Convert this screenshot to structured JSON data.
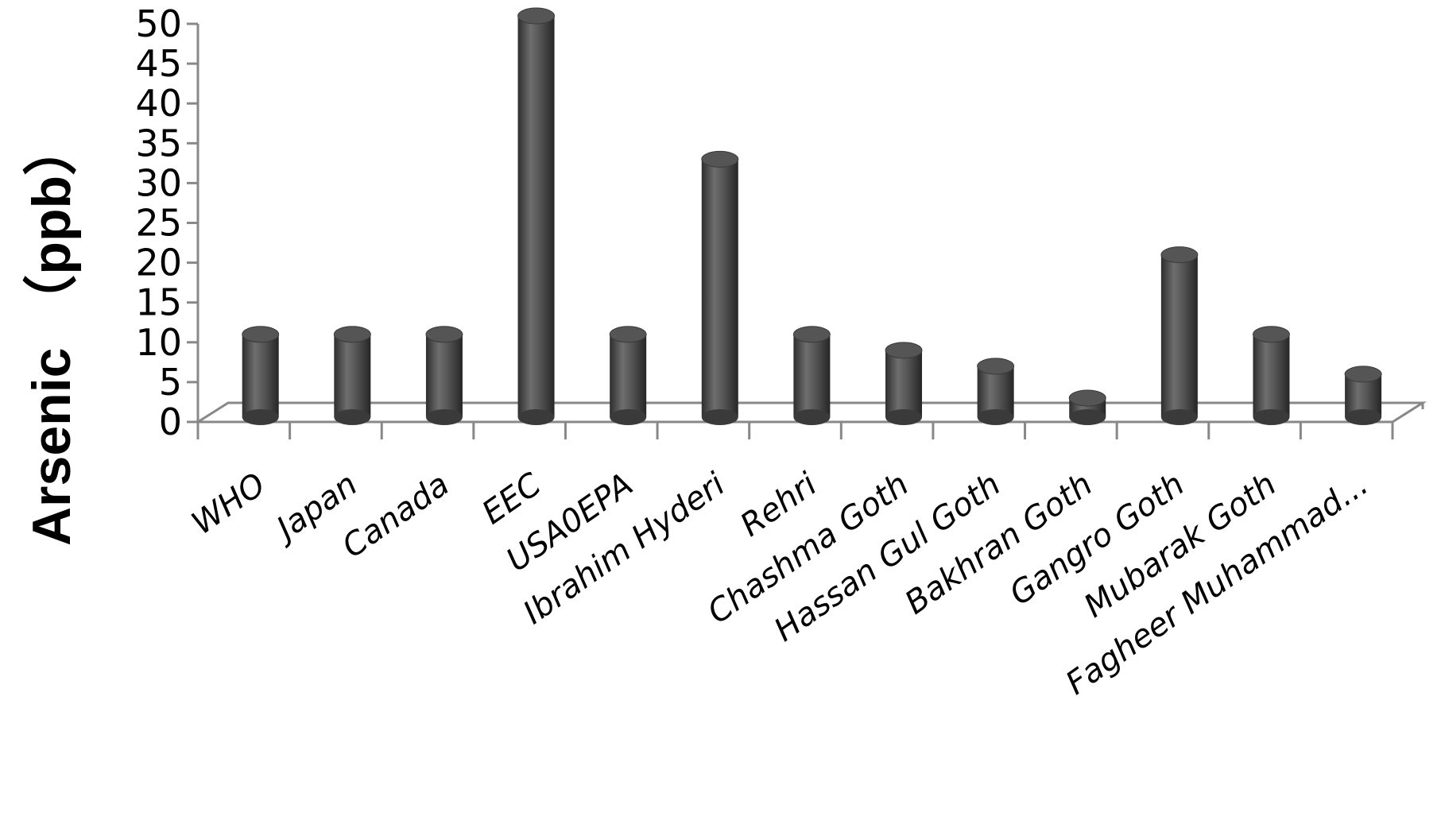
{
  "chart_data": {
    "type": "bar",
    "style": "3d-cylinder",
    "title": "",
    "xlabel": "",
    "ylabel_main": "Arsenic",
    "ylabel_unit": "（ppb）",
    "ylim": [
      0,
      50
    ],
    "yticks": [
      "0",
      "5",
      "10",
      "15",
      "20",
      "25",
      "30",
      "35",
      "40",
      "45",
      "50"
    ],
    "categories": [
      "WHO",
      "Japan",
      "Canada",
      "EEC",
      "USA0EPA",
      "Ibrahim Hyderi",
      "Rehri",
      "Chashma Goth",
      "Hassan Gul Goth",
      "Bakhran Goth",
      "Gangro Goth",
      "Mubarak Goth",
      "Fagheer Muhammad..."
    ],
    "values": [
      10,
      10,
      10,
      50,
      10,
      32,
      10,
      8,
      6,
      2,
      20,
      10,
      5
    ],
    "bar_color": "#4a4a4a",
    "grid": false
  }
}
